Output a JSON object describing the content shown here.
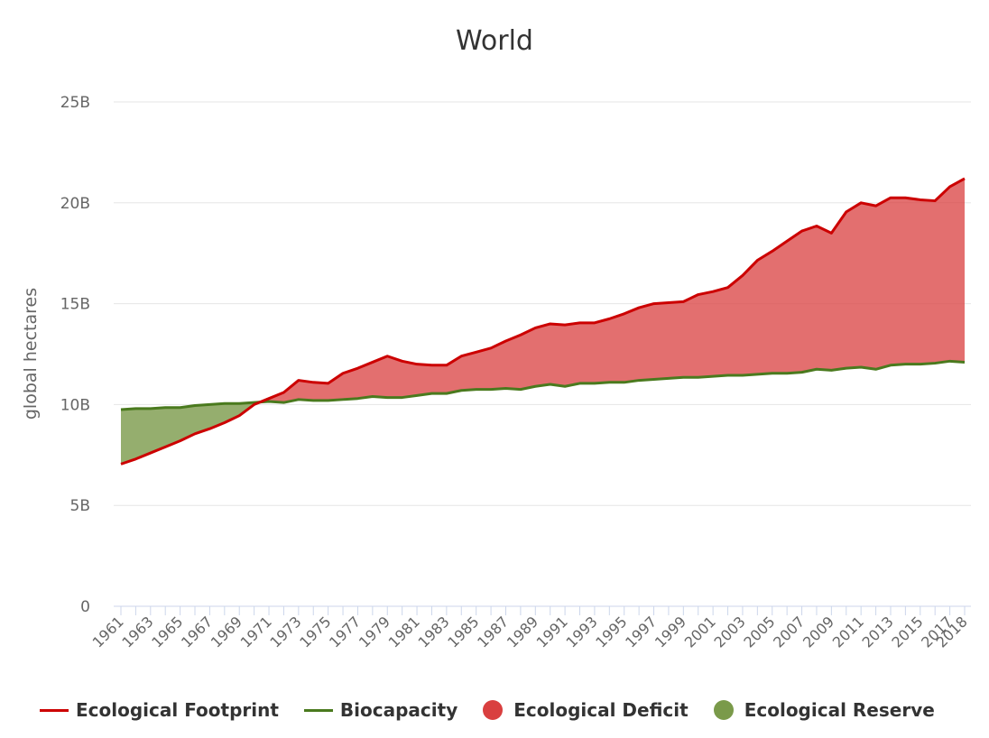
{
  "chart_data": {
    "type": "area",
    "title": "World",
    "ylabel": "global hectares",
    "xlabel": "",
    "ylim": [
      0,
      25000000000
    ],
    "yticks": [
      {
        "value": 0,
        "label": "0"
      },
      {
        "value": 5000000000,
        "label": "5B"
      },
      {
        "value": 10000000000,
        "label": "10B"
      },
      {
        "value": 15000000000,
        "label": "15B"
      },
      {
        "value": 20000000000,
        "label": "20B"
      },
      {
        "value": 25000000000,
        "label": "25B"
      }
    ],
    "xticks": [
      "1961",
      "1963",
      "1965",
      "1967",
      "1969",
      "1971",
      "1973",
      "1975",
      "1977",
      "1979",
      "1981",
      "1983",
      "1985",
      "1987",
      "1989",
      "1991",
      "1993",
      "1995",
      "1997",
      "1999",
      "2001",
      "2003",
      "2005",
      "2007",
      "2009",
      "2011",
      "2013",
      "2015",
      "2017",
      "2018"
    ],
    "grid": true,
    "legend_position": "bottom",
    "x": [
      1961,
      1962,
      1963,
      1964,
      1965,
      1966,
      1967,
      1968,
      1969,
      1970,
      1971,
      1972,
      1973,
      1974,
      1975,
      1976,
      1977,
      1978,
      1979,
      1980,
      1981,
      1982,
      1983,
      1984,
      1985,
      1986,
      1987,
      1988,
      1989,
      1990,
      1991,
      1992,
      1993,
      1994,
      1995,
      1996,
      1997,
      1998,
      1999,
      2000,
      2001,
      2002,
      2003,
      2004,
      2005,
      2006,
      2007,
      2008,
      2009,
      2010,
      2011,
      2012,
      2013,
      2014,
      2015,
      2016,
      2017,
      2018
    ],
    "series": [
      {
        "name": "Ecological Footprint",
        "color": "#cc0000",
        "values": [
          7.05,
          7.3,
          7.6,
          7.9,
          8.2,
          8.55,
          8.8,
          9.1,
          9.45,
          10.0,
          10.3,
          10.6,
          11.2,
          11.1,
          11.05,
          11.55,
          11.8,
          12.1,
          12.4,
          12.15,
          12.0,
          11.95,
          11.95,
          12.4,
          12.6,
          12.8,
          13.15,
          13.45,
          13.8,
          14.0,
          13.95,
          14.05,
          14.05,
          14.25,
          14.5,
          14.8,
          15.0,
          15.05,
          15.1,
          15.45,
          15.6,
          15.8,
          16.4,
          17.15,
          17.6,
          18.1,
          18.6,
          18.85,
          18.5,
          19.55,
          20.0,
          19.85,
          20.25,
          20.25,
          20.15,
          20.1,
          20.8,
          21.2
        ]
      },
      {
        "name": "Biocapacity",
        "color": "#4a7a1e",
        "values": [
          9.75,
          9.8,
          9.8,
          9.85,
          9.85,
          9.95,
          10.0,
          10.05,
          10.05,
          10.1,
          10.15,
          10.1,
          10.25,
          10.2,
          10.2,
          10.25,
          10.3,
          10.4,
          10.35,
          10.35,
          10.45,
          10.55,
          10.55,
          10.7,
          10.75,
          10.75,
          10.8,
          10.75,
          10.9,
          11.0,
          10.9,
          11.05,
          11.05,
          11.1,
          11.1,
          11.2,
          11.25,
          11.3,
          11.35,
          11.35,
          11.4,
          11.45,
          11.45,
          11.5,
          11.55,
          11.55,
          11.6,
          11.75,
          11.7,
          11.8,
          11.85,
          11.75,
          11.95,
          12.0,
          12.0,
          12.05,
          12.15,
          12.1
        ]
      }
    ],
    "value_units": "billion global hectares",
    "areas": [
      {
        "name": "Ecological Deficit",
        "color": "#d93f3f"
      },
      {
        "name": "Ecological Reserve",
        "color": "#7a9a4a"
      }
    ]
  }
}
